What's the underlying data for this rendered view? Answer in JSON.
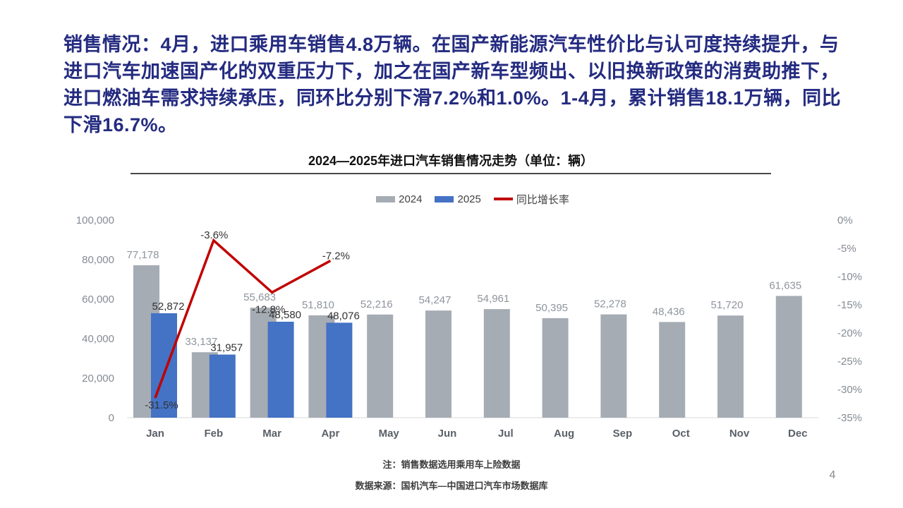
{
  "headline": {
    "text": "销售情况：4月，进口乘用车销售4.8万辆。在国产新能源汽车性价比与认可度持续提升，与进口汽车加速国产化的双重压力下，加之在国产新车型频出、以旧换新政策的消费助推下，进口燃油车需求持续承压，同环比分别下滑7.2%和1.0%。1-4月，累计销售18.1万辆，同比下滑16.7%。"
  },
  "chart": {
    "title": "2024—2025年进口汽车销售情况走势（单位：辆）",
    "legend": [
      {
        "label": "2024",
        "color": "#A6ACB4",
        "marker": "square"
      },
      {
        "label": "2025",
        "color": "#4472C4",
        "marker": "square"
      },
      {
        "label": "同比增长率",
        "color": "#C00000",
        "marker": "line"
      }
    ]
  },
  "chart_data": {
    "type": "bar",
    "subtype": "grouped-bars-with-line-overlay",
    "title": "2024—2025年进口汽车销售情况走势（单位：辆）",
    "categories": [
      "Jan",
      "Feb",
      "Mar",
      "Apr",
      "May",
      "Jun",
      "Jul",
      "Aug",
      "Sep",
      "Oct",
      "Nov",
      "Dec"
    ],
    "series": [
      {
        "name": "2024",
        "type": "bar",
        "color": "#A6ACB4",
        "label_color": "#8F959D",
        "values": [
          77178,
          33137,
          55683,
          51810,
          52216,
          54247,
          54961,
          50395,
          52278,
          48436,
          51720,
          61635
        ]
      },
      {
        "name": "2025",
        "type": "bar",
        "color": "#4472C4",
        "label_color": "#333333",
        "values": [
          52872,
          31957,
          48580,
          48076
        ]
      },
      {
        "name": "同比增长率",
        "type": "line",
        "axis": "right",
        "color": "#C00000",
        "label_color": "#333333",
        "values": [
          -31.5,
          -3.6,
          -12.8,
          -7.2
        ]
      }
    ],
    "left_axis": {
      "min": 0,
      "max": 100000,
      "step": 20000,
      "tick_color": "#858B93"
    },
    "right_axis": {
      "min": -35,
      "max": 0,
      "step": 5,
      "format": "percent",
      "tick_color": "#858B93"
    },
    "x_axis": {
      "label_color": "#5A6068",
      "baseline_color": "#D9D9D9"
    },
    "grid": false,
    "legend_position": "top"
  },
  "footer": {
    "note1": "注：销售数据选用乘用车上险数据",
    "note2": "数据来源：国机汽车—中国进口汽车市场数据库",
    "page_number": "4"
  },
  "colors": {
    "headline_text": "#242B80",
    "bar_2024": "#A6ACB4",
    "bar_2025": "#4472C4",
    "yoy_line": "#C00000"
  }
}
